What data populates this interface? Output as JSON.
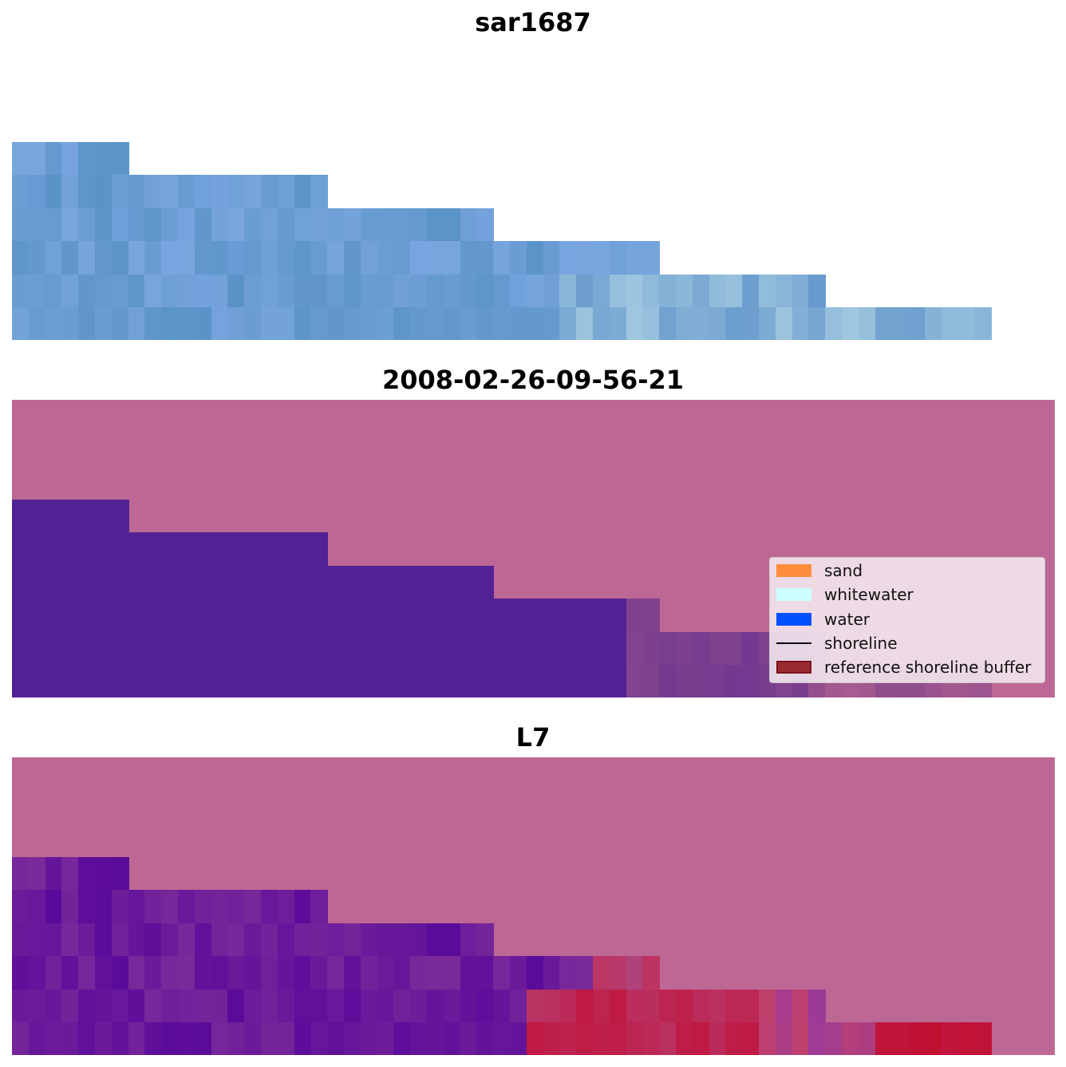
{
  "panels": [
    {
      "title": "sar1687"
    },
    {
      "title": "2008-02-26-09-56-21"
    },
    {
      "title": "L7"
    }
  ],
  "legend": {
    "items": [
      {
        "label": "sand",
        "color": "#ff8c3a",
        "kind": "patch"
      },
      {
        "label": "whitewater",
        "color": "#ccffff",
        "kind": "patch"
      },
      {
        "label": "water",
        "color": "#0050ff",
        "kind": "patch"
      },
      {
        "label": "shoreline",
        "color": "#000000",
        "kind": "line"
      },
      {
        "label": "reference shoreline buffer",
        "color": "#9a2a30",
        "kind": "patch"
      }
    ]
  },
  "colors": {
    "background": "#bd6794",
    "water_class": "#532196",
    "rgb_water": "#6699cc",
    "l7_water": "#6a1a9a",
    "l7_sand": "#c0163e"
  }
}
